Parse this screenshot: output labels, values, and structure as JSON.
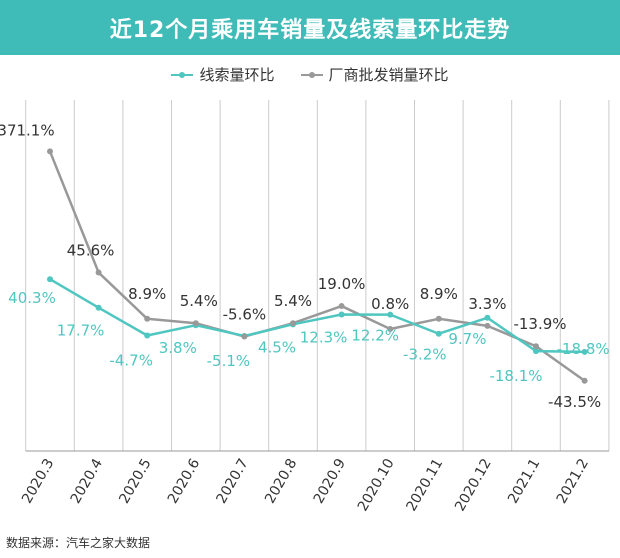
{
  "chart_data": {
    "type": "line",
    "title": "近12个月乘用车销量及线索量环比走势",
    "categories": [
      "2020.3",
      "2020.4",
      "2020.5",
      "2020.6",
      "2020.7",
      "2020.8",
      "2020.9",
      "2020.10",
      "2020.11",
      "2020.12",
      "2021.1",
      "2021.2"
    ],
    "series": [
      {
        "name": "线索量环比",
        "color": "#4fc6c0",
        "values": [
          40.3,
          17.7,
          -4.7,
          3.8,
          -5.1,
          4.5,
          12.3,
          12.2,
          -3.2,
          9.7,
          -18.1,
          -18.8
        ],
        "labels": [
          "40.3%",
          "17.7%",
          "-4.7%",
          "3.8%",
          "-5.1%",
          "4.5%",
          "12.3%",
          "12.2%",
          "-3.2%",
          "9.7%",
          "-18.1%",
          "-18.8%"
        ]
      },
      {
        "name": "厂商批发销量环比",
        "color": "#999999",
        "values": [
          371.1,
          45.6,
          8.9,
          5.4,
          -5.6,
          5.4,
          19.0,
          0.8,
          8.9,
          3.3,
          -13.9,
          -43.5
        ],
        "labels": [
          "371.1%",
          "45.6%",
          "8.9%",
          "5.4%",
          "-5.6%",
          "5.4%",
          "19.0%",
          "0.8%",
          "8.9%",
          "3.3%",
          "-13.9%",
          "-43.5%"
        ]
      }
    ],
    "xlabel": "",
    "ylabel": "",
    "legend_position": "top-center",
    "grid": "vertical",
    "source": "数据来源：汽车之家大数据"
  },
  "colors": {
    "title_bg": "#40bcb8",
    "title_text": "#ffffff",
    "grid": "#cccccc",
    "axis": "#999999",
    "text": "#333333"
  }
}
